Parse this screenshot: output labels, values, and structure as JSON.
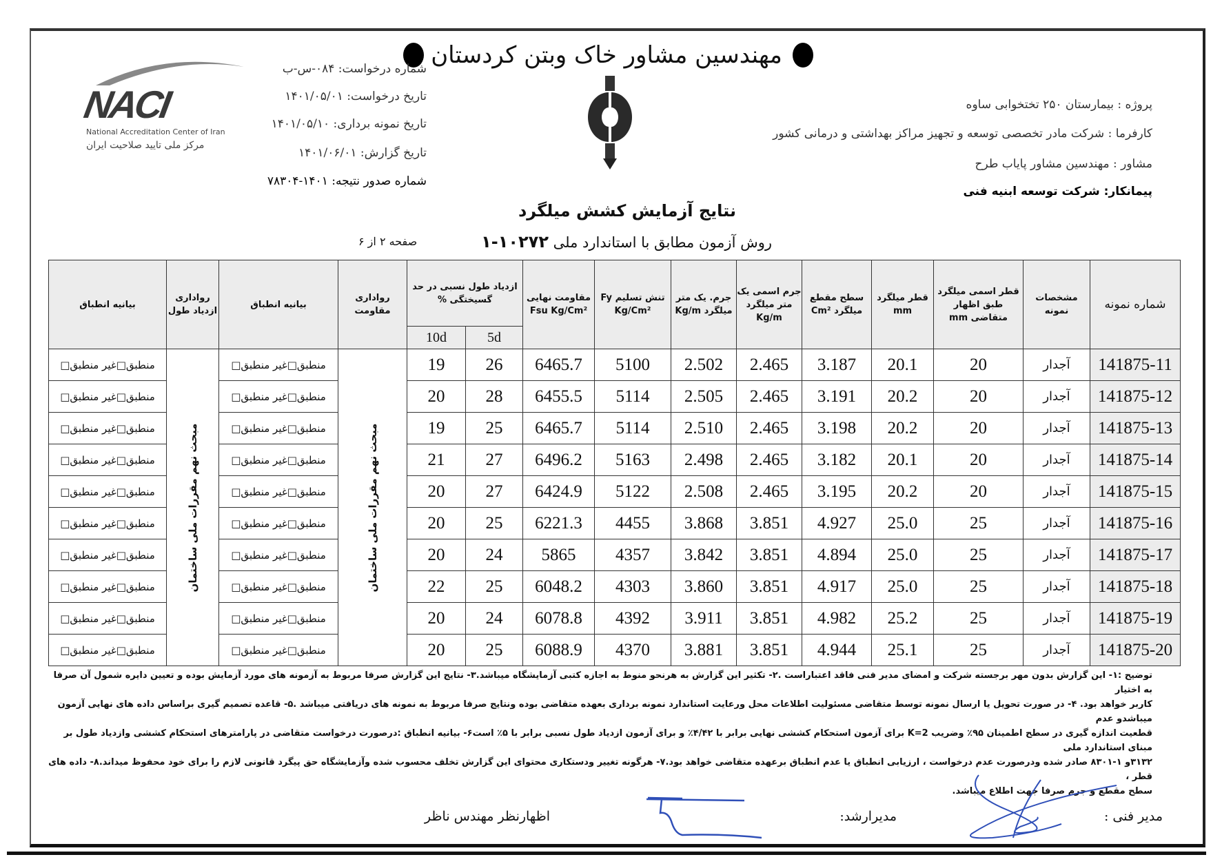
{
  "header": {
    "company": "مهندسین مشاور خاک وبتن کردستان",
    "accreditation_logo": {
      "text": "NACI",
      "en": "National Accreditation Center of Iran",
      "fa": "مرکز ملی تایید صلاحیت ایران"
    },
    "request_info": [
      "شماره درخواست: ۰۸۴-س-ب",
      "تاریخ درخواست: ۱۴۰۱/۰۵/۰۱",
      "تاریخ نمونه برداری: ۱۴۰۱/۰۵/۱۰",
      "تاریخ گزارش: ۱۴۰۱/۰۶/۰۱",
      "شماره صدور نتیجه: ۱۴۰۱-۷۸۳۰۴"
    ],
    "project_info": [
      "پروژه : بیمارستان ۲۵۰ تختخوابی ساوه",
      "کارفرما : شرکت مادر تخصصی توسعه و تجهیز مراکز بهداشتی و درمانی کشور",
      "مشاور : مهندسین مشاور پایاب طرح",
      "پیمانکار: شرکت توسعه ابنیه فنی"
    ]
  },
  "report": {
    "title": "نتایج آزمایش کشش میلگرد",
    "method": "روش آزمون مطابق با استاندارد ملی",
    "standard": "۱۰۲۷۲-۱",
    "page": "صفحه ۲ از ۶"
  },
  "table": {
    "headers": {
      "sample_no": "شماره نمونه",
      "spec": "مشخصات نمونه",
      "nominal_dia": "قطر اسمی میلگرد طبق اظهار متقاضی mm",
      "dia": "قطر میلگرد mm",
      "area": "سطح مقطع میلگرد Cm²",
      "nominal_mass": "جرم اسمی یک متر میلگرد Kg/m",
      "mass": "جرم. یک متر میلگرد Kg/m",
      "fy": "تنش تسلیم Fy Kg/Cm²",
      "fsu": "مقاومت نهایی Fsu Kg/Cm²",
      "elongation": "ازدیاد طول نسبی در حد گسیختگی %",
      "e5d": "5d",
      "e10d": "10d",
      "tol_strength": "رواداری مقاومت",
      "compliance1": "بیانیه انطباق",
      "tol_elong": "رواداری ازدیاد طول",
      "compliance2": "بیانیه انطباق"
    },
    "tolerance_ref": "مبحث نهم مقررات ملی ساختمان",
    "compliance_yes": "منطبق",
    "compliance_no": "غیر منطبق",
    "rows": [
      {
        "sample": "141875-11",
        "spec": "آجدار",
        "nom_dia": "20",
        "dia": "20.1",
        "area": "3.187",
        "nom_mass": "2.465",
        "mass": "2.502",
        "fy": "5100",
        "fsu": "6465.7",
        "e5d": "26",
        "e10d": "19"
      },
      {
        "sample": "141875-12",
        "spec": "آجدار",
        "nom_dia": "20",
        "dia": "20.2",
        "area": "3.191",
        "nom_mass": "2.465",
        "mass": "2.505",
        "fy": "5114",
        "fsu": "6455.5",
        "e5d": "28",
        "e10d": "20"
      },
      {
        "sample": "141875-13",
        "spec": "آجدار",
        "nom_dia": "20",
        "dia": "20.2",
        "area": "3.198",
        "nom_mass": "2.465",
        "mass": "2.510",
        "fy": "5114",
        "fsu": "6465.7",
        "e5d": "25",
        "e10d": "19"
      },
      {
        "sample": "141875-14",
        "spec": "آجدار",
        "nom_dia": "20",
        "dia": "20.1",
        "area": "3.182",
        "nom_mass": "2.465",
        "mass": "2.498",
        "fy": "5163",
        "fsu": "6496.2",
        "e5d": "27",
        "e10d": "21"
      },
      {
        "sample": "141875-15",
        "spec": "آجدار",
        "nom_dia": "20",
        "dia": "20.2",
        "area": "3.195",
        "nom_mass": "2.465",
        "mass": "2.508",
        "fy": "5122",
        "fsu": "6424.9",
        "e5d": "27",
        "e10d": "20"
      },
      {
        "sample": "141875-16",
        "spec": "آجدار",
        "nom_dia": "25",
        "dia": "25.0",
        "area": "4.927",
        "nom_mass": "3.851",
        "mass": "3.868",
        "fy": "4455",
        "fsu": "6221.3",
        "e5d": "25",
        "e10d": "20"
      },
      {
        "sample": "141875-17",
        "spec": "آجدار",
        "nom_dia": "25",
        "dia": "25.0",
        "area": "4.894",
        "nom_mass": "3.851",
        "mass": "3.842",
        "fy": "4357",
        "fsu": "5865",
        "e5d": "24",
        "e10d": "20"
      },
      {
        "sample": "141875-18",
        "spec": "آجدار",
        "nom_dia": "25",
        "dia": "25.0",
        "area": "4.917",
        "nom_mass": "3.851",
        "mass": "3.860",
        "fy": "4303",
        "fsu": "6048.2",
        "e5d": "25",
        "e10d": "22"
      },
      {
        "sample": "141875-19",
        "spec": "آجدار",
        "nom_dia": "25",
        "dia": "25.2",
        "area": "4.982",
        "nom_mass": "3.851",
        "mass": "3.911",
        "fy": "4392",
        "fsu": "6078.8",
        "e5d": "24",
        "e10d": "20"
      },
      {
        "sample": "141875-20",
        "spec": "آجدار",
        "nom_dia": "25",
        "dia": "25.1",
        "area": "4.944",
        "nom_mass": "3.851",
        "mass": "3.881",
        "fy": "4370",
        "fsu": "6088.9",
        "e5d": "25",
        "e10d": "20"
      }
    ]
  },
  "notes": [
    "توضیح :۱- این گزارش بدون مهر برجسته شرکت و امضای مدیر فنی فاقد اعتباراست .۲- تکثیر این گزارش به هرنحو منوط به اجازه کتبی آزمایشگاه میباشد.۳- نتایج این گزارش صرفا مربوط به آزمونه های مورد آزمایش بوده و تعیین دایره شمول آن صرفا به اختیار",
    "کاربر خواهد بود. ۴- در صورت تحویل یا ارسال نمونه توسط متقاضی مسئولیت اطلاعات محل ورعایت استاندارد نمونه برداری بعهده متقاضی بوده ونتایج صرفا مربوط به نمونه های دریافتی میباشد .۵- قاعده تصمیم گیری براساس داده های نهایی آزمون میباشدو عدم",
    "قطعیت اندازه گیری در سطح اطمینان ۹۵٪ وضریب K=2 برای آزمون استحکام کششی نهایی برابر با ۴/۴۲٪ و برای آزمون ازدیاد طول نسبی برابر با ۵٪ است۶- بیانیه انطباق :درصورت درخواست متقاضی در پارامترهای استحکام کششی وازدیاد طول بر مبنای استاندارد ملی",
    "۳۱۳۲و ۱-۸۳۰۱ صادر شده ودرصورت عدم درخواست ، ارزیابی انطباق یا عدم انطباق برعهده متقاضی خواهد بود.۷- هرگونه تغییر ودستکاری محتوای این گزارش تخلف محسوب شده وآزمایشگاه حق پیگرد قانونی لازم را برای خود محفوظ میداند.۸- داده های قطر ،",
    "سطح مقطع و جرم صرفا جهت اطلاع میباشد."
  ],
  "signatures": {
    "technical_manager": "مدیر فنی :",
    "senior_manager": "مدیرارشد:",
    "supervisor": "اظهارنظر مهندس ناظر"
  },
  "colors": {
    "ink": "#111111",
    "signature": "#2f4fb8",
    "header_shade": "#ececec"
  }
}
